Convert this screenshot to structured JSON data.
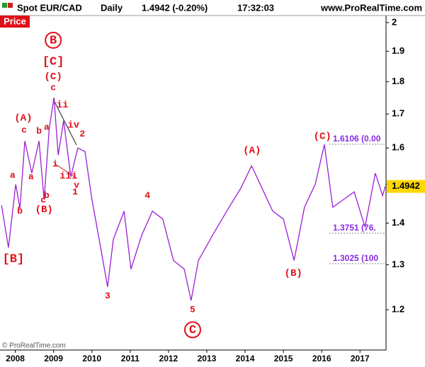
{
  "chart_data": {
    "type": "line",
    "symbol": "Spot EUR/CAD",
    "period": "Daily",
    "quote": "1.4942 (-0.20%)",
    "time": "17:32:03",
    "source": "www.ProRealTime.com",
    "y_label": "Price",
    "footer": "© ProRealTime.com",
    "log_scale": true,
    "grid": false,
    "color": "#9b1fd6",
    "x": [
      2007.64,
      2007.82,
      2008.01,
      2008.12,
      2008.25,
      2008.43,
      2008.62,
      2008.75,
      2008.89,
      2009.01,
      2009.12,
      2009.26,
      2009.45,
      2009.63,
      2009.82,
      2010.0,
      2010.19,
      2010.41,
      2010.56,
      2010.84,
      2011.02,
      2011.3,
      2011.58,
      2011.85,
      2012.13,
      2012.41,
      2012.59,
      2012.78,
      2013.15,
      2013.52,
      2013.89,
      2014.17,
      2014.44,
      2014.72,
      2015.0,
      2015.28,
      2015.55,
      2015.83,
      2016.07,
      2016.29,
      2016.57,
      2016.85,
      2017.13,
      2017.4,
      2017.59,
      2017.66
    ],
    "values": [
      1.445,
      1.34,
      1.5,
      1.437,
      1.62,
      1.53,
      1.62,
      1.46,
      1.66,
      1.75,
      1.58,
      1.68,
      1.52,
      1.6,
      1.59,
      1.46,
      1.36,
      1.25,
      1.36,
      1.43,
      1.29,
      1.37,
      1.43,
      1.41,
      1.31,
      1.29,
      1.22,
      1.31,
      1.37,
      1.43,
      1.49,
      1.55,
      1.49,
      1.43,
      1.41,
      1.31,
      1.44,
      1.5,
      1.61,
      1.44,
      1.46,
      1.48,
      1.39,
      1.53,
      1.47,
      1.4942
    ],
    "last_value": 1.4942,
    "xlim": [
      2007.6,
      2017.68
    ],
    "xticks": [
      2008,
      2009,
      2010,
      2011,
      2012,
      2013,
      2014,
      2015,
      2016,
      2017
    ],
    "ylim": [
      1.117,
      2.025
    ],
    "yticks": [
      1.2,
      1.3,
      1.4,
      1.5,
      1.6,
      1.7,
      1.8,
      1.9,
      2
    ],
    "levels": [
      {
        "value": 1.6106,
        "label": "1.6106 (0.00"
      },
      {
        "value": 1.3751,
        "label": "1.3751 (76."
      },
      {
        "value": 1.3025,
        "label": "1.3025 (100"
      }
    ],
    "annotations": [
      {
        "text": "B",
        "x": 2008.99,
        "y": 1.938,
        "circled": true
      },
      {
        "text": "[C]",
        "x": 2008.99,
        "y": 1.866
      },
      {
        "text": "(C)",
        "x": 2008.99,
        "y": 1.817
      },
      {
        "text": "c",
        "x": 2008.99,
        "y": 1.781
      },
      {
        "text": "ii",
        "x": 2009.23,
        "y": 1.728
      },
      {
        "text": "(A)",
        "x": 2008.21,
        "y": 1.688
      },
      {
        "text": "c",
        "x": 2008.23,
        "y": 1.652
      },
      {
        "text": "b",
        "x": 2008.62,
        "y": 1.648
      },
      {
        "text": "a",
        "x": 2008.82,
        "y": 1.66
      },
      {
        "text": "iv",
        "x": 2009.52,
        "y": 1.667
      },
      {
        "text": "2",
        "x": 2009.75,
        "y": 1.64
      },
      {
        "text": "a",
        "x": 2007.93,
        "y": 1.524
      },
      {
        "text": "a",
        "x": 2008.41,
        "y": 1.52
      },
      {
        "text": "i",
        "x": 2009.04,
        "y": 1.555
      },
      {
        "text": "iii",
        "x": 2009.39,
        "y": 1.522
      },
      {
        "text": "v",
        "x": 2009.6,
        "y": 1.497
      },
      {
        "text": "1",
        "x": 2009.56,
        "y": 1.479
      },
      {
        "text": "b",
        "x": 2008.82,
        "y": 1.47
      },
      {
        "text": "c",
        "x": 2008.73,
        "y": 1.458
      },
      {
        "text": "b",
        "x": 2008.12,
        "y": 1.43
      },
      {
        "text": "(B)",
        "x": 2008.75,
        "y": 1.434
      },
      {
        "text": "[B]",
        "x": 2007.95,
        "y": 1.314
      },
      {
        "text": "4",
        "x": 2011.45,
        "y": 1.47
      },
      {
        "text": "3",
        "x": 2010.41,
        "y": 1.23
      },
      {
        "text": "5",
        "x": 2012.63,
        "y": 1.2
      },
      {
        "text": "C",
        "x": 2012.63,
        "y": 1.158,
        "circled": true
      },
      {
        "text": "(A)",
        "x": 2014.18,
        "y": 1.593
      },
      {
        "text": "(C)",
        "x": 2016.02,
        "y": 1.634
      },
      {
        "text": "(B)",
        "x": 2015.26,
        "y": 1.281
      }
    ]
  }
}
